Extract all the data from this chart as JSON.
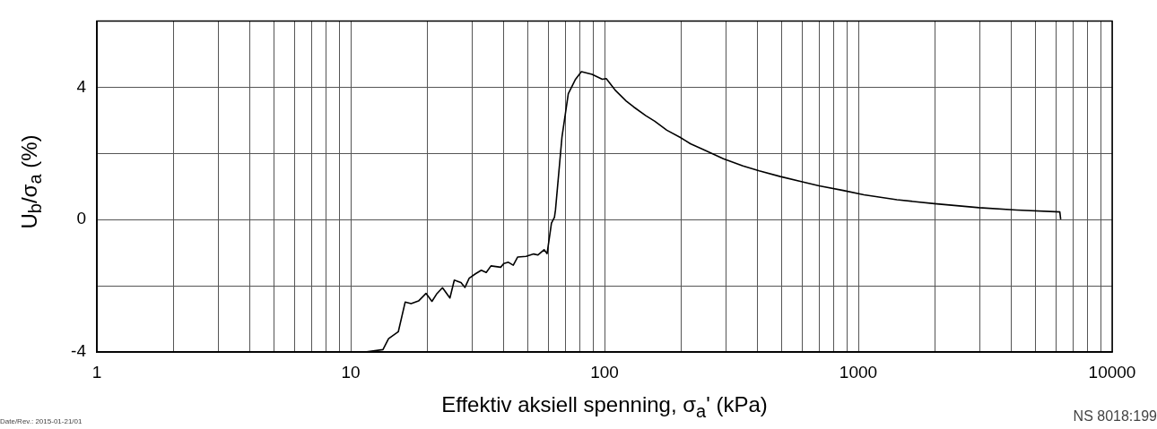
{
  "chart_data": {
    "type": "line",
    "xlabel": "Effektiv aksiell spenning, σ$_{a}$'  (kPa)",
    "ylabel": "U$_{b}$/σ$_{a}$  (%)",
    "annotations": [
      "Date/Rev.: 2015-01-21/01",
      "NS 8018:199"
    ],
    "log": "x",
    "grid": true,
    "xlim": [
      1,
      10000
    ],
    "xticks": [
      1,
      {
        "value": 2,
        "label": null
      },
      {
        "value": 3,
        "label": null
      },
      {
        "value": 4,
        "label": null
      },
      {
        "value": 5,
        "label": null
      },
      {
        "value": 6,
        "label": null
      },
      {
        "value": 7,
        "label": null
      },
      {
        "value": 8,
        "label": null
      },
      {
        "value": 9,
        "label": null
      },
      10,
      {
        "value": 20,
        "label": null
      },
      {
        "value": 30,
        "label": null
      },
      {
        "value": 40,
        "label": null
      },
      {
        "value": 50,
        "label": null
      },
      {
        "value": 60,
        "label": null
      },
      {
        "value": 70,
        "label": null
      },
      {
        "value": 80,
        "label": null
      },
      {
        "value": 90,
        "label": null
      },
      100,
      {
        "value": 200,
        "label": null
      },
      {
        "value": 300,
        "label": null
      },
      {
        "value": 400,
        "label": null
      },
      {
        "value": 500,
        "label": null
      },
      {
        "value": 600,
        "label": null
      },
      {
        "value": 700,
        "label": null
      },
      {
        "value": 800,
        "label": null
      },
      {
        "value": 900,
        "label": null
      },
      1000,
      {
        "value": 2000,
        "label": null
      },
      {
        "value": 3000,
        "label": null
      },
      {
        "value": 4000,
        "label": null
      },
      {
        "value": 5000,
        "label": null
      },
      {
        "value": 6000,
        "label": null
      },
      {
        "value": 7000,
        "label": null
      },
      {
        "value": 8000,
        "label": null
      },
      {
        "value": 9000,
        "label": null
      },
      10000
    ],
    "ylim": [
      -4,
      6
    ],
    "yticks": [
      -4,
      {
        "value": -2,
        "label": null
      },
      0,
      {
        "value": 2,
        "label": null
      },
      4,
      {
        "value": 6,
        "label": null
      }
    ],
    "x": [
      11.4,
      13.4,
      14.1,
      15.4,
      16.4,
      17.3,
      18.5,
      19.8,
      20.9,
      21.8,
      23.0,
      24.6,
      25.6,
      27.2,
      28.2,
      29.3,
      31.0,
      32.7,
      34.2,
      35.7,
      39.0,
      40.1,
      41.8,
      43.7,
      45.5,
      49.1,
      52.6,
      54.7,
      57.8,
      59.4,
      61.8,
      63.5,
      64.1,
      68,
      72,
      76.9,
      81.1,
      89.3,
      98.0,
      101.6,
      110.8,
      121.8,
      130.4,
      145.4,
      157.8,
      176,
      199,
      218,
      243,
      294,
      351,
      407,
      493,
      596,
      701,
      871,
      1052,
      1419,
      1991,
      2990,
      4197,
      6220,
      6270
    ],
    "series": [
      {
        "color": "#000000",
        "values": [
          -4,
          -3.93,
          -3.6,
          -3.39,
          -2.49,
          -2.54,
          -2.46,
          -2.23,
          -2.47,
          -2.25,
          -2.06,
          -2.37,
          -1.83,
          -1.9,
          -2.05,
          -1.77,
          -1.64,
          -1.53,
          -1.6,
          -1.4,
          -1.44,
          -1.33,
          -1.29,
          -1.38,
          -1.13,
          -1.11,
          -1.04,
          -1.07,
          -0.91,
          -1.03,
          -0.11,
          0.07,
          0.29,
          2.5,
          3.8,
          4.24,
          4.47,
          4.39,
          4.24,
          4.26,
          3.89,
          3.58,
          3.4,
          3.14,
          2.97,
          2.7,
          2.48,
          2.29,
          2.13,
          1.84,
          1.62,
          1.47,
          1.3,
          1.15,
          1.02,
          0.88,
          0.75,
          0.6,
          0.48,
          0.36,
          0.29,
          0.23,
          0.01
        ]
      }
    ]
  }
}
